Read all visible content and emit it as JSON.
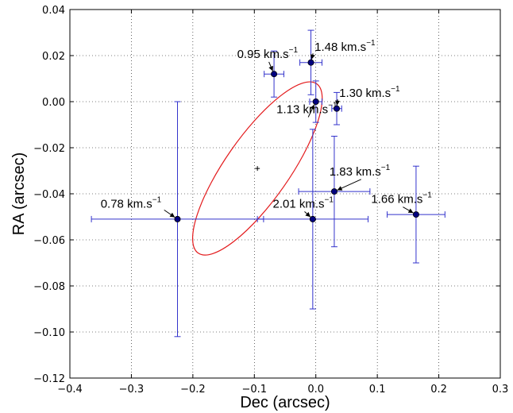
{
  "chart_data": {
    "type": "scatter",
    "xlabel": "Dec (arcsec)",
    "ylabel": "RA (arcsec)",
    "xlim": [
      -0.4,
      0.3
    ],
    "ylim": [
      -0.12,
      0.04
    ],
    "x_ticks": [
      -0.4,
      -0.3,
      -0.2,
      -0.1,
      0.0,
      0.1,
      0.2,
      0.3
    ],
    "x_tick_labels": [
      "−0.4",
      "−0.3",
      "−0.2",
      "−0.1",
      "0.0",
      "0.1",
      "0.2",
      "0.3"
    ],
    "y_ticks": [
      0.04,
      0.02,
      0.0,
      -0.02,
      -0.04,
      -0.06,
      -0.08,
      -0.1,
      -0.12
    ],
    "y_tick_labels": [
      "0.04",
      "0.02",
      "0.00",
      "−0.02",
      "−0.04",
      "−0.06",
      "−0.08",
      "−0.10",
      "−0.12"
    ],
    "grid": true,
    "colors": {
      "points": "#00007f",
      "errorbars": "#3333cc",
      "ellipse": "#e31a1c"
    },
    "points": [
      {
        "x": -0.068,
        "y": 0.012,
        "xerr": 0.016,
        "yerr": 0.01,
        "text": "0.95 km.s",
        "sup": "−1",
        "label_x": -0.128,
        "label_y": 0.019
      },
      {
        "x": -0.008,
        "y": 0.017,
        "xerr": 0.018,
        "yerr": 0.014,
        "text": "1.48 km.s",
        "sup": "−1",
        "label_x": -0.002,
        "label_y": 0.022
      },
      {
        "x": 0.0,
        "y": 0.0,
        "xerr": 0.01,
        "yerr": 0.009,
        "text": "1.13 km.s",
        "sup": "−1",
        "label_x": -0.064,
        "label_y": -0.005
      },
      {
        "x": 0.034,
        "y": -0.003,
        "xerr": 0.008,
        "yerr": 0.007,
        "text": "1.30 km.s",
        "sup": "−1",
        "label_x": 0.038,
        "label_y": 0.002
      },
      {
        "x": 0.03,
        "y": -0.039,
        "xerr": 0.058,
        "yerr": 0.024,
        "text": "1.83 km.s",
        "sup": "−1",
        "label_x": 0.022,
        "label_y": -0.032
      },
      {
        "x": -0.225,
        "y": -0.051,
        "xerr": 0.14,
        "yerr": 0.051,
        "text": "0.78 km.s",
        "sup": "−1",
        "label_x": -0.35,
        "label_y": -0.046
      },
      {
        "x": -0.005,
        "y": -0.051,
        "xerr": 0.09,
        "yerr": 0.039,
        "text": "2.01 km.s",
        "sup": "−1",
        "label_x": -0.07,
        "label_y": -0.046
      },
      {
        "x": 0.163,
        "y": -0.049,
        "xerr": 0.047,
        "yerr": 0.021,
        "text": "1.66 km.s",
        "sup": "−1",
        "label_x": 0.09,
        "label_y": -0.044
      }
    ],
    "ellipse": {
      "cx": -0.095,
      "cy": -0.029,
      "rx": 0.168,
      "ry": 0.052,
      "angle_deg": 55
    },
    "center_marker": {
      "x": -0.095,
      "y": -0.029
    }
  }
}
